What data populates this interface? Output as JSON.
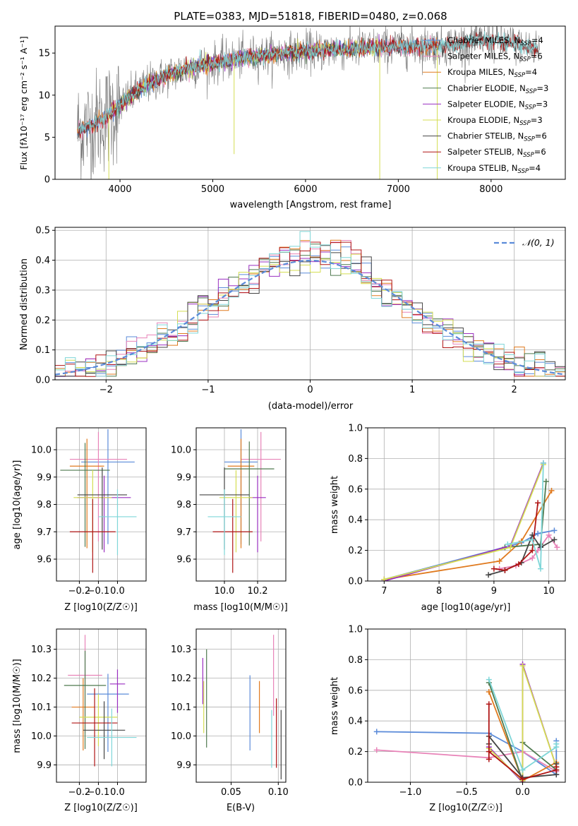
{
  "chart_data": [
    {
      "type": "line",
      "id": "spectrum",
      "title": "PLATE=0383, MJD=51818, FIBERID=0480, z=0.068",
      "xlabel": "wavelength [Angstrom, rest frame]",
      "ylabel": "Flux [fλ10⁻¹⁷ erg cm⁻² s⁻¹ A⁻¹]",
      "xlim": [
        3300,
        8800
      ],
      "ylim": [
        0,
        18.2
      ],
      "xticks": [
        4000,
        5000,
        6000,
        7000,
        8000
      ],
      "yticks": [
        0,
        5,
        10,
        15
      ],
      "grid": false,
      "legend_position": "top-right",
      "continuum": {
        "x": [
          3550,
          3700,
          3850,
          4000,
          4150,
          4300,
          4500,
          4700,
          4900,
          5100,
          5300,
          5500,
          5700,
          5900,
          6100,
          6300,
          6500,
          6700,
          6900,
          7100,
          7300,
          7500,
          7700,
          7900,
          8100,
          8300,
          8500
        ],
        "y": [
          5.8,
          6.5,
          7.4,
          8.8,
          10.2,
          11.3,
          12.3,
          13.1,
          13.6,
          14.0,
          14.4,
          14.7,
          14.9,
          15.1,
          15.3,
          15.4,
          15.5,
          15.6,
          15.7,
          15.8,
          15.8,
          15.9,
          16.2,
          16.5,
          16.4,
          15.9,
          15.5
        ]
      },
      "series": [
        {
          "name": "Chabrier MILES, N_SSP=4",
          "label_main": "Chabrier MILES, N",
          "label_sub": "SSP",
          "label_end": "=4",
          "color": "#5b8bd9",
          "range": [
            3540,
            7450
          ]
        },
        {
          "name": "Salpeter MILES, N_SSP=6",
          "label_main": "Salpeter MILES, N",
          "label_sub": "SSP",
          "label_end": "=6",
          "color": "#e883b8",
          "range": [
            3540,
            7450
          ]
        },
        {
          "name": "Kroupa MILES, N_SSP=4",
          "label_main": "Kroupa MILES, N",
          "label_sub": "SSP",
          "label_end": "=4",
          "color": "#e07a1f",
          "range": [
            3540,
            7450
          ]
        },
        {
          "name": "Chabrier ELODIE, N_SSP=3",
          "label_main": "Chabrier ELODIE, N",
          "label_sub": "SSP",
          "label_end": "=3",
          "color": "#4f7a4f",
          "range": [
            3900,
            6800
          ]
        },
        {
          "name": "Salpeter ELODIE, N_SSP=3",
          "label_main": "Salpeter ELODIE, N",
          "label_sub": "SSP",
          "label_end": "=3",
          "color": "#9a2fc0",
          "range": [
            3900,
            6800
          ]
        },
        {
          "name": "Kroupa ELODIE, N_SSP=3",
          "label_main": "Kroupa ELODIE, N",
          "label_sub": "SSP",
          "label_end": "=3",
          "color": "#d4dd52",
          "range": [
            3900,
            6800
          ]
        },
        {
          "name": "Chabrier STELIB, N_SSP=6",
          "label_main": "Chabrier STELIB, N",
          "label_sub": "SSP",
          "label_end": "=6",
          "color": "#444444",
          "range": [
            3550,
            8500
          ]
        },
        {
          "name": "Salpeter STELIB, N_SSP=6",
          "label_main": "Salpeter STELIB, N",
          "label_sub": "SSP",
          "label_end": "=6",
          "color": "#b01515",
          "range": [
            3550,
            8500
          ]
        },
        {
          "name": "Kroupa STELIB, N_SSP=4",
          "label_main": "Kroupa STELIB, N",
          "label_sub": "SSP",
          "label_end": "=4",
          "color": "#7fd6d8",
          "range": [
            3550,
            8500
          ]
        }
      ]
    },
    {
      "type": "step",
      "id": "residuals",
      "xlabel": "(data-model)/error",
      "ylabel": "Normed distribution",
      "xlim": [
        -2.5,
        2.5
      ],
      "ylim": [
        0,
        0.51
      ],
      "xticks": [
        -2,
        -1,
        0,
        1,
        2
      ],
      "yticks": [
        0.0,
        0.1,
        0.2,
        0.3,
        0.4,
        0.5
      ],
      "grid": true,
      "legend_position": "top-right",
      "legend": "𝒩(0, 1)",
      "bin_width": 0.1,
      "gaussian_color": "#5b8bd9"
    },
    {
      "type": "scatter",
      "id": "age-vs-Z",
      "xlabel": "Z [log10(Z/Z☉)]",
      "ylabel": "age [log10(age/yr)]",
      "xlim": [
        -0.32,
        0.15
      ],
      "ylim": [
        9.52,
        10.08
      ],
      "xticks": [
        -0.2,
        -0.1,
        0.0
      ],
      "yticks": [
        9.6,
        9.7,
        9.8,
        9.9,
        10.0
      ],
      "grid": true,
      "points": [
        {
          "x": -0.05,
          "y": 9.955,
          "xerr": 0.14,
          "yerr": [
            0.3,
            0.12
          ],
          "color": "#5b8bd9"
        },
        {
          "x": -0.1,
          "y": 9.965,
          "xerr": 0.15,
          "yerr": [
            0.3,
            0.1
          ],
          "color": "#e883b8"
        },
        {
          "x": -0.16,
          "y": 9.94,
          "xerr": 0.09,
          "yerr": [
            0.3,
            0.1
          ],
          "color": "#e07a1f"
        },
        {
          "x": -0.17,
          "y": 9.925,
          "xerr": 0.13,
          "yerr": [
            0.28,
            0.1
          ],
          "color": "#4f7a4f"
        },
        {
          "x": -0.07,
          "y": 9.825,
          "xerr": 0.14,
          "yerr": [
            0.2,
            0.08
          ],
          "color": "#9a2fc0"
        },
        {
          "x": -0.13,
          "y": 9.825,
          "xerr": 0.1,
          "yerr": [
            0.2,
            0.1
          ],
          "color": "#d4dd52"
        },
        {
          "x": -0.08,
          "y": 9.835,
          "xerr": 0.13,
          "yerr": [
            0.2,
            0.1
          ],
          "color": "#444444"
        },
        {
          "x": -0.13,
          "y": 9.7,
          "xerr": 0.12,
          "yerr": [
            0.15,
            0.12
          ],
          "color": "#b01515"
        },
        {
          "x": 0.0,
          "y": 9.755,
          "xerr": 0.1,
          "yerr": [
            0.14,
            0.1
          ],
          "color": "#7fd6d8"
        }
      ]
    },
    {
      "type": "scatter",
      "id": "age-vs-mass",
      "xlabel": "mass [log10(M/M☉)]",
      "ylabel": "",
      "xlim": [
        9.83,
        10.37
      ],
      "ylim": [
        9.52,
        10.08
      ],
      "xticks": [
        10.0,
        10.2
      ],
      "yticks": [
        9.6,
        9.7,
        9.8,
        9.9,
        10.0
      ],
      "grid": true,
      "points": [
        {
          "x": 10.1,
          "y": 9.955,
          "xerr": 0.1,
          "yerr": [
            0.3,
            0.12
          ],
          "color": "#5b8bd9"
        },
        {
          "x": 10.22,
          "y": 9.965,
          "xerr": 0.12,
          "yerr": [
            0.3,
            0.1
          ],
          "color": "#e883b8"
        },
        {
          "x": 10.1,
          "y": 9.94,
          "xerr": 0.08,
          "yerr": [
            0.3,
            0.1
          ],
          "color": "#e07a1f"
        },
        {
          "x": 10.15,
          "y": 9.93,
          "xerr": 0.15,
          "yerr": [
            0.28,
            0.1
          ],
          "color": "#4f7a4f"
        },
        {
          "x": 10.2,
          "y": 9.825,
          "xerr": 0.05,
          "yerr": [
            0.2,
            0.08
          ],
          "color": "#9a2fc0"
        },
        {
          "x": 10.07,
          "y": 9.825,
          "xerr": 0.1,
          "yerr": [
            0.2,
            0.1
          ],
          "color": "#d4dd52"
        },
        {
          "x": 10.0,
          "y": 9.835,
          "xerr": 0.15,
          "yerr": [
            0.2,
            0.1
          ],
          "color": "#444444"
        },
        {
          "x": 10.05,
          "y": 9.7,
          "xerr": 0.12,
          "yerr": [
            0.15,
            0.12
          ],
          "color": "#b01515"
        },
        {
          "x": 10.0,
          "y": 9.755,
          "xerr": 0.1,
          "yerr": [
            0.14,
            0.1
          ],
          "color": "#7fd6d8"
        }
      ]
    },
    {
      "type": "line",
      "id": "mass-weight-vs-age",
      "xlabel": "age [log10(age/yr)]",
      "ylabel": "mass weight",
      "xlim": [
        6.7,
        10.3
      ],
      "ylim": [
        0,
        1.0
      ],
      "xticks": [
        7,
        8,
        9,
        10
      ],
      "yticks": [
        0.0,
        0.2,
        0.4,
        0.6,
        0.8,
        1.0
      ],
      "grid": true,
      "series": [
        {
          "color": "#5b8bd9",
          "x": [
            7.0,
            9.5,
            9.8,
            10.1
          ],
          "y": [
            0.01,
            0.25,
            0.31,
            0.33
          ]
        },
        {
          "color": "#e883b8",
          "x": [
            9.1,
            9.4,
            9.7,
            9.8,
            10.0,
            10.15
          ],
          "y": [
            0.08,
            0.1,
            0.15,
            0.2,
            0.3,
            0.22
          ]
        },
        {
          "color": "#e07a1f",
          "x": [
            7.0,
            9.1,
            9.5,
            10.05
          ],
          "y": [
            0.01,
            0.13,
            0.26,
            0.59
          ]
        },
        {
          "color": "#4f7a4f",
          "x": [
            9.2,
            9.85,
            9.95
          ],
          "y": [
            0.22,
            0.24,
            0.65
          ]
        },
        {
          "color": "#9a2fc0",
          "x": [
            7.0,
            9.3,
            9.9
          ],
          "y": [
            0.0,
            0.23,
            0.77
          ]
        },
        {
          "color": "#d4dd52",
          "x": [
            7.0,
            9.3,
            9.9
          ],
          "y": [
            0.01,
            0.22,
            0.76
          ]
        },
        {
          "color": "#444444",
          "x": [
            8.9,
            9.2,
            9.5,
            9.7,
            9.85,
            10.1
          ],
          "y": [
            0.04,
            0.07,
            0.12,
            0.3,
            0.22,
            0.27
          ]
        },
        {
          "color": "#b01515",
          "x": [
            9.0,
            9.2,
            9.45,
            9.7,
            9.8
          ],
          "y": [
            0.08,
            0.07,
            0.11,
            0.2,
            0.51
          ]
        },
        {
          "color": "#7fd6d8",
          "x": [
            9.25,
            9.7,
            9.85,
            9.9
          ],
          "y": [
            0.24,
            0.27,
            0.08,
            0.77
          ]
        }
      ]
    },
    {
      "type": "scatter",
      "id": "mass-vs-Z",
      "xlabel": "Z [log10(Z/Z☉)]",
      "ylabel": "mass [log10(M/M☉)]",
      "xlim": [
        -0.32,
        0.15
      ],
      "ylim": [
        9.84,
        10.37
      ],
      "xticks": [
        -0.2,
        -0.1,
        0.0
      ],
      "yticks": [
        9.9,
        10.0,
        10.1,
        10.2,
        10.3
      ],
      "grid": true,
      "points": [
        {
          "x": -0.05,
          "y": 10.145,
          "xerr": 0.11,
          "yerr": [
            0.2,
            0.07
          ],
          "color": "#5b8bd9"
        },
        {
          "x": -0.17,
          "y": 10.21,
          "xerr": 0.09,
          "yerr": [
            0.2,
            0.14
          ],
          "color": "#e883b8"
        },
        {
          "x": -0.18,
          "y": 10.1,
          "xerr": 0.06,
          "yerr": [
            0.15,
            0.1
          ],
          "color": "#e07a1f"
        },
        {
          "x": -0.17,
          "y": 10.175,
          "xerr": 0.11,
          "yerr": [
            0.22,
            0.12
          ],
          "color": "#4f7a4f"
        },
        {
          "x": 0.0,
          "y": 10.18,
          "xerr": 0.04,
          "yerr": [
            0.1,
            0.05
          ],
          "color": "#9a2fc0"
        },
        {
          "x": -0.1,
          "y": 10.065,
          "xerr": 0.1,
          "yerr": [
            0.1,
            0.08
          ],
          "color": "#d4dd52"
        },
        {
          "x": -0.07,
          "y": 10.02,
          "xerr": 0.11,
          "yerr": [
            0.1,
            0.1
          ],
          "color": "#444444"
        },
        {
          "x": -0.12,
          "y": 10.045,
          "xerr": 0.12,
          "yerr": [
            0.15,
            0.12
          ],
          "color": "#b01515"
        },
        {
          "x": -0.03,
          "y": 9.995,
          "xerr": 0.13,
          "yerr": [
            0.1,
            0.1
          ],
          "color": "#7fd6d8"
        }
      ]
    },
    {
      "type": "scatter",
      "id": "mass-vs-ebv",
      "xlabel": "E(B-V)",
      "ylabel": "",
      "xlim": [
        0.013,
        0.108
      ],
      "ylim": [
        9.84,
        10.37
      ],
      "xticks": [
        0.05,
        0.1
      ],
      "yticks": [
        9.9,
        10.0,
        10.1,
        10.2,
        10.3
      ],
      "grid": true,
      "points": [
        {
          "x": 0.07,
          "y": 10.08,
          "yerr": [
            0.13,
            0.13
          ],
          "color": "#5b8bd9"
        },
        {
          "x": 0.095,
          "y": 10.2,
          "yerr": [
            0.13,
            0.15
          ],
          "color": "#e883b8"
        },
        {
          "x": 0.08,
          "y": 10.1,
          "yerr": [
            0.09,
            0.09
          ],
          "color": "#e07a1f"
        },
        {
          "x": 0.024,
          "y": 10.13,
          "yerr": [
            0.17,
            0.17
          ],
          "color": "#4f7a4f"
        },
        {
          "x": 0.02,
          "y": 10.19,
          "yerr": [
            0.08,
            0.08
          ],
          "color": "#9a2fc0"
        },
        {
          "x": 0.021,
          "y": 10.1,
          "yerr": [
            0.09,
            0.09
          ],
          "color": "#d4dd52"
        },
        {
          "x": 0.103,
          "y": 9.97,
          "yerr": [
            0.12,
            0.12
          ],
          "color": "#444444"
        },
        {
          "x": 0.098,
          "y": 10.01,
          "yerr": [
            0.12,
            0.12
          ],
          "color": "#b01515"
        },
        {
          "x": 0.093,
          "y": 9.99,
          "yerr": [
            0.1,
            0.1
          ],
          "color": "#7fd6d8"
        }
      ]
    },
    {
      "type": "line",
      "id": "mass-weight-vs-Z",
      "xlabel": "Z [log10(Z/Z☉)]",
      "ylabel": "mass weight",
      "xlim": [
        -1.38,
        0.38
      ],
      "ylim": [
        0,
        1.0
      ],
      "xticks": [
        -1.0,
        -0.5,
        0.0
      ],
      "yticks": [
        0.0,
        0.2,
        0.4,
        0.6,
        0.8,
        1.0
      ],
      "grid": true,
      "series": [
        {
          "color": "#5b8bd9",
          "x": [
            -1.3,
            -0.3,
            0.0,
            0.3,
            0.3
          ],
          "y": [
            0.33,
            0.32,
            0.2,
            0.05,
            0.27
          ]
        },
        {
          "color": "#e883b8",
          "x": [
            -1.3,
            -0.3,
            0.0,
            0.3
          ],
          "y": [
            0.21,
            0.16,
            0.2,
            0.07
          ]
        },
        {
          "color": "#e07a1f",
          "x": [
            -0.3,
            0.0,
            0.3
          ],
          "y": [
            0.59,
            0.01,
            0.13
          ]
        },
        {
          "color": "#4f7a4f",
          "x": [
            -0.3,
            0.0,
            0.0,
            0.3
          ],
          "y": [
            0.65,
            0.01,
            0.26,
            0.08
          ]
        },
        {
          "color": "#9a2fc0",
          "x": [
            -0.3,
            0.0,
            0.0,
            0.3
          ],
          "y": [
            0.23,
            0.0,
            0.77,
            0.1
          ]
        },
        {
          "color": "#d4dd52",
          "x": [
            -0.3,
            0.0,
            0.0,
            0.3
          ],
          "y": [
            0.22,
            0.01,
            0.76,
            0.1
          ]
        },
        {
          "color": "#444444",
          "x": [
            -0.3,
            -0.3,
            0.0,
            0.3,
            0.3
          ],
          "y": [
            0.25,
            0.3,
            0.03,
            0.05,
            0.12
          ]
        },
        {
          "color": "#b01515",
          "x": [
            -0.3,
            -0.3,
            -0.3,
            0.0,
            0.3,
            0.3
          ],
          "y": [
            0.15,
            0.51,
            0.2,
            0.02,
            0.08,
            0.1
          ]
        },
        {
          "color": "#7fd6d8",
          "x": [
            -0.3,
            0.0,
            0.3,
            0.3
          ],
          "y": [
            0.67,
            0.08,
            0.23,
            0.25
          ]
        }
      ]
    }
  ]
}
